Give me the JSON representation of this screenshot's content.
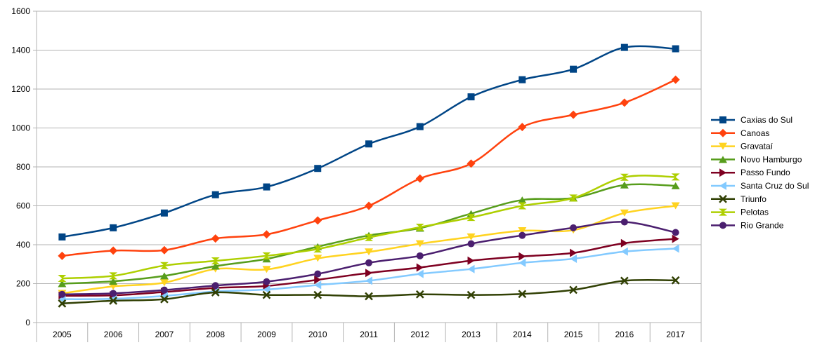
{
  "chart_data": {
    "type": "line",
    "title": "",
    "xlabel": "",
    "ylabel": "",
    "categories": [
      "2005",
      "2006",
      "2007",
      "2008",
      "2009",
      "2010",
      "2011",
      "2012",
      "2013",
      "2014",
      "2015",
      "2016",
      "2017"
    ],
    "ylim": [
      0,
      1600
    ],
    "yticks": [
      0,
      200,
      400,
      600,
      800,
      1000,
      1200,
      1400,
      1600
    ],
    "grid": "horizontal",
    "legend_position": "right",
    "smooth": true,
    "series": [
      {
        "name": "Caxias do Sul",
        "color": "#004586",
        "marker": "square",
        "values": [
          440,
          487,
          563,
          657,
          697,
          792,
          918,
          1007,
          1160,
          1248,
          1302,
          1414,
          1407
        ]
      },
      {
        "name": "Canoas",
        "color": "#ff420e",
        "marker": "diamond",
        "values": [
          343,
          370,
          372,
          432,
          453,
          525,
          600,
          740,
          817,
          1005,
          1068,
          1130,
          1248
        ]
      },
      {
        "name": "Gravataí",
        "color": "#ffd320",
        "marker": "triangle-down",
        "values": [
          150,
          186,
          205,
          275,
          273,
          330,
          363,
          405,
          440,
          472,
          475,
          563,
          600
        ]
      },
      {
        "name": "Novo Hamburgo",
        "color": "#579d1c",
        "marker": "triangle-up",
        "values": [
          200,
          212,
          240,
          290,
          327,
          390,
          448,
          485,
          560,
          630,
          640,
          707,
          703
        ]
      },
      {
        "name": "Passo Fundo",
        "color": "#7e0021",
        "marker": "triangle-right",
        "values": [
          138,
          140,
          157,
          178,
          188,
          220,
          255,
          283,
          318,
          340,
          358,
          408,
          430
        ]
      },
      {
        "name": "Santa Cruz do Sul",
        "color": "#83caff",
        "marker": "triangle-left",
        "values": [
          120,
          122,
          137,
          160,
          170,
          193,
          215,
          250,
          275,
          307,
          328,
          365,
          380
        ]
      },
      {
        "name": "Triunfo",
        "color": "#314004",
        "marker": "x",
        "values": [
          98,
          112,
          120,
          155,
          142,
          142,
          135,
          145,
          142,
          147,
          168,
          215,
          217
        ]
      },
      {
        "name": "Pelotas",
        "color": "#aecf00",
        "marker": "bowtie",
        "values": [
          227,
          240,
          293,
          317,
          343,
          378,
          437,
          490,
          540,
          600,
          640,
          747,
          748
        ]
      },
      {
        "name": "Rio Grande",
        "color": "#4b1f6f",
        "marker": "circle",
        "values": [
          145,
          150,
          167,
          190,
          210,
          250,
          307,
          343,
          405,
          448,
          487,
          517,
          463
        ]
      }
    ]
  }
}
